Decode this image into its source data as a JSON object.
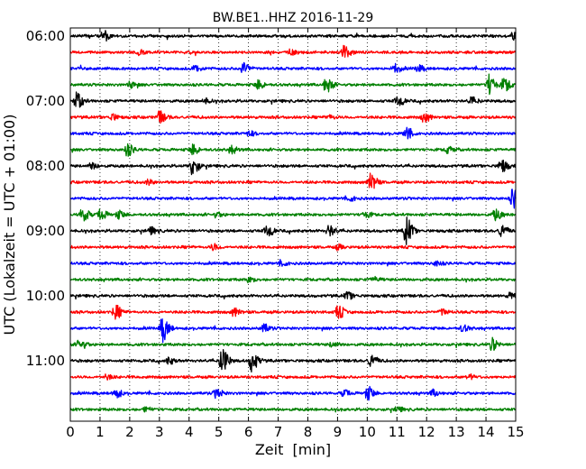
{
  "chart_data": {
    "type": "line",
    "title": "BW.BE1..HHZ 2016-11-29",
    "xlabel": "Zeit  [min]",
    "ylabel": "UTC (Lokalzeit = UTC + 01:00)",
    "xlim": [
      0,
      15
    ],
    "x_ticks": [
      "0",
      "1",
      "2",
      "3",
      "4",
      "5",
      "6",
      "7",
      "8",
      "9",
      "10",
      "11",
      "12",
      "13",
      "14",
      "15"
    ],
    "y_ticks": [
      "06:00",
      "07:00",
      "08:00",
      "09:00",
      "10:00",
      "11:00"
    ],
    "grid": "vertical dotted lines at each minute",
    "trace_colors": [
      "#000000",
      "#ff0000",
      "#0000ff",
      "#008000"
    ],
    "traces": [
      {
        "start": "06:00",
        "color": "#000000",
        "events": [
          [
            1.1,
            0.35
          ],
          [
            14.9,
            0.2
          ]
        ]
      },
      {
        "start": "06:15",
        "color": "#ff0000",
        "events": [
          [
            9.2,
            0.45
          ],
          [
            2.3,
            0.15
          ],
          [
            7.4,
            0.15
          ]
        ]
      },
      {
        "start": "06:30",
        "color": "#0000ff",
        "events": [
          [
            5.8,
            0.4
          ],
          [
            4.2,
            0.2
          ],
          [
            10.9,
            0.3
          ],
          [
            11.7,
            0.2
          ]
        ]
      },
      {
        "start": "06:45",
        "color": "#008000",
        "events": [
          [
            8.6,
            0.5
          ],
          [
            14.1,
            0.7
          ],
          [
            14.6,
            0.45
          ],
          [
            6.3,
            0.3
          ],
          [
            2.0,
            0.2
          ]
        ]
      },
      {
        "start": "07:00",
        "color": "#000000",
        "events": [
          [
            0.2,
            0.6
          ],
          [
            11.0,
            0.35
          ],
          [
            13.5,
            0.25
          ],
          [
            4.5,
            0.15
          ]
        ]
      },
      {
        "start": "07:15",
        "color": "#ff0000",
        "events": [
          [
            3.0,
            0.4
          ],
          [
            11.9,
            0.3
          ],
          [
            1.4,
            0.2
          ],
          [
            8.7,
            0.15
          ]
        ]
      },
      {
        "start": "07:30",
        "color": "#0000ff",
        "events": [
          [
            11.3,
            0.35
          ],
          [
            6.0,
            0.15
          ]
        ]
      },
      {
        "start": "07:45",
        "color": "#008000",
        "events": [
          [
            1.9,
            0.4
          ],
          [
            4.1,
            0.35
          ],
          [
            5.4,
            0.25
          ],
          [
            12.7,
            0.2
          ]
        ]
      },
      {
        "start": "08:00",
        "color": "#000000",
        "events": [
          [
            4.1,
            0.6
          ],
          [
            14.5,
            0.45
          ],
          [
            0.7,
            0.2
          ]
        ]
      },
      {
        "start": "08:15",
        "color": "#ff0000",
        "events": [
          [
            10.1,
            0.6
          ],
          [
            2.6,
            0.15
          ]
        ]
      },
      {
        "start": "08:30",
        "color": "#0000ff",
        "events": [
          [
            14.9,
            0.7
          ],
          [
            9.4,
            0.15
          ]
        ]
      },
      {
        "start": "08:45",
        "color": "#008000",
        "events": [
          [
            0.4,
            0.45
          ],
          [
            1.0,
            0.35
          ],
          [
            1.6,
            0.25
          ],
          [
            14.3,
            0.35
          ],
          [
            9.9,
            0.2
          ],
          [
            4.9,
            0.15
          ]
        ]
      },
      {
        "start": "09:00",
        "color": "#000000",
        "events": [
          [
            11.3,
            0.9
          ],
          [
            6.6,
            0.4
          ],
          [
            8.7,
            0.35
          ],
          [
            14.5,
            0.4
          ],
          [
            2.7,
            0.25
          ]
        ]
      },
      {
        "start": "09:15",
        "color": "#ff0000",
        "events": [
          [
            4.8,
            0.2
          ],
          [
            9.0,
            0.15
          ]
        ]
      },
      {
        "start": "09:30",
        "color": "#0000ff",
        "events": [
          [
            7.1,
            0.15
          ],
          [
            12.3,
            0.15
          ]
        ]
      },
      {
        "start": "09:45",
        "color": "#008000",
        "events": [
          [
            6.0,
            0.15
          ],
          [
            10.2,
            0.15
          ]
        ]
      },
      {
        "start": "10:00",
        "color": "#000000",
        "events": [
          [
            9.3,
            0.25
          ],
          [
            14.8,
            0.2
          ]
        ]
      },
      {
        "start": "10:15",
        "color": "#ff0000",
        "events": [
          [
            1.5,
            0.45
          ],
          [
            9.0,
            0.45
          ],
          [
            5.5,
            0.25
          ],
          [
            12.5,
            0.2
          ]
        ]
      },
      {
        "start": "10:30",
        "color": "#0000ff",
        "events": [
          [
            3.1,
            0.9
          ],
          [
            6.5,
            0.25
          ],
          [
            13.2,
            0.2
          ]
        ]
      },
      {
        "start": "10:45",
        "color": "#008000",
        "events": [
          [
            0.3,
            0.35
          ],
          [
            14.2,
            0.4
          ],
          [
            8.8,
            0.15
          ]
        ]
      },
      {
        "start": "11:00",
        "color": "#000000",
        "events": [
          [
            5.1,
            0.9
          ],
          [
            6.1,
            0.75
          ],
          [
            10.1,
            0.4
          ],
          [
            3.3,
            0.2
          ]
        ]
      },
      {
        "start": "11:15",
        "color": "#ff0000",
        "events": [
          [
            1.2,
            0.15
          ],
          [
            13.4,
            0.15
          ]
        ]
      },
      {
        "start": "11:30",
        "color": "#0000ff",
        "events": [
          [
            10.0,
            0.45
          ],
          [
            1.5,
            0.3
          ],
          [
            4.9,
            0.3
          ],
          [
            9.2,
            0.2
          ],
          [
            12.2,
            0.2
          ]
        ]
      },
      {
        "start": "11:45",
        "color": "#008000",
        "events": [
          [
            2.5,
            0.15
          ],
          [
            11.0,
            0.15
          ]
        ]
      }
    ]
  }
}
